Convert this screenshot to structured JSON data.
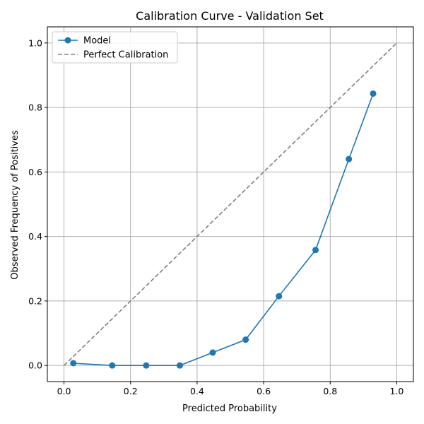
{
  "chart_data": {
    "type": "line",
    "title": "Calibration Curve - Validation Set",
    "xlabel": "Predicted Probability",
    "ylabel": "Observed Frequency of Positives",
    "xlim": [
      -0.05,
      1.05
    ],
    "ylim": [
      -0.05,
      1.05
    ],
    "xticks": [
      "0.0",
      "0.2",
      "0.4",
      "0.6",
      "0.8",
      "1.0"
    ],
    "yticks": [
      "0.0",
      "0.2",
      "0.4",
      "0.6",
      "0.8",
      "1.0"
    ],
    "grid": true,
    "legend_position": "top-left",
    "series": [
      {
        "name": "Model",
        "style": "solid-with-circle-markers",
        "color": "#1f77b4",
        "x": [
          0.028,
          0.145,
          0.247,
          0.348,
          0.447,
          0.546,
          0.646,
          0.756,
          0.856,
          0.929
        ],
        "y": [
          0.007,
          0.0,
          0.0,
          0.0,
          0.04,
          0.08,
          0.215,
          0.358,
          0.64,
          0.843
        ]
      },
      {
        "name": "Perfect Calibration",
        "style": "dashed",
        "color": "#808080",
        "x": [
          0.0,
          1.0
        ],
        "y": [
          0.0,
          1.0
        ]
      }
    ]
  }
}
